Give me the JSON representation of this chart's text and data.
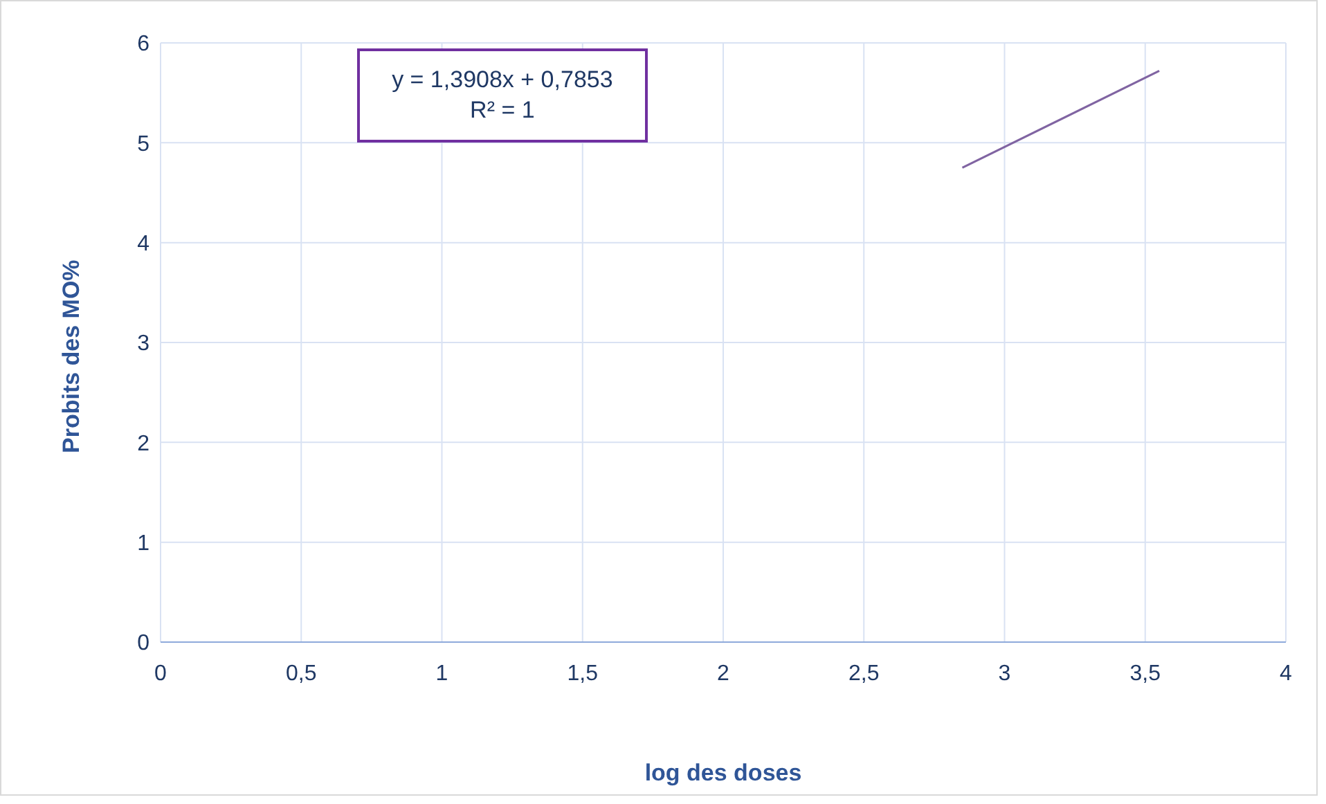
{
  "chart_data": {
    "type": "line",
    "xlabel": "log des doses",
    "ylabel": "Probits  des MO%",
    "annotations": [
      "y = 1,3908x + 0,7853",
      "R² = 1"
    ],
    "series": [
      {
        "color": "#8064a2",
        "x": [
          2.85,
          3.55
        ],
        "values": [
          4.75,
          5.72
        ]
      }
    ],
    "xlim": [
      0,
      4
    ],
    "xticks": [
      0,
      {
        "value": 0.5,
        "label": "0,5"
      },
      1,
      {
        "value": 1.5,
        "label": "1,5"
      },
      2,
      {
        "value": 2.5,
        "label": "2,5"
      },
      3,
      {
        "value": 3.5,
        "label": "3,5"
      },
      4
    ],
    "ylim": [
      0,
      6
    ],
    "yticks": [
      0,
      1,
      2,
      3,
      4,
      5,
      6
    ],
    "grid": true,
    "marker": "none"
  }
}
